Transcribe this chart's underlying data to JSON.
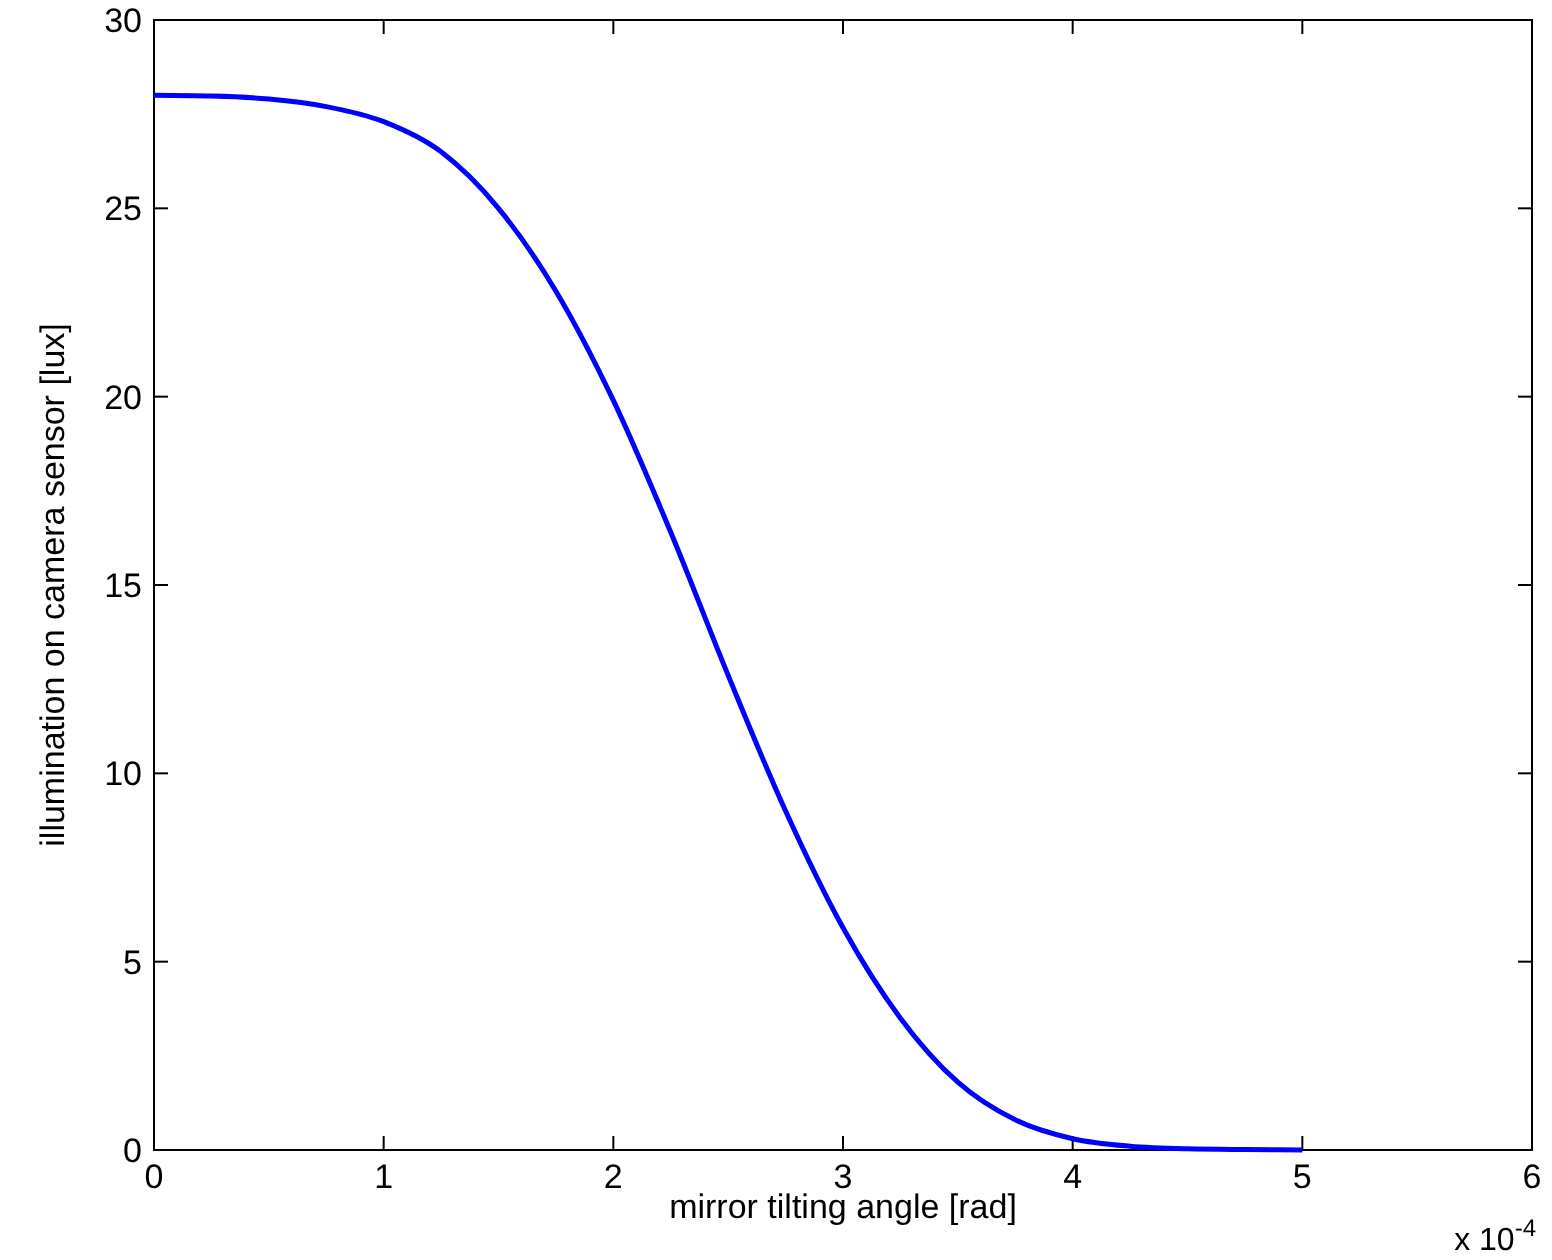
{
  "chart_data": {
    "type": "line",
    "xlabel": "mirror tilting angle [rad]",
    "ylabel": "illumination on camera sensor [lux]",
    "annotations": [
      "x 10$^{-4}$"
    ],
    "xlim": [
      0,
      6
    ],
    "xticks": [
      0,
      1,
      2,
      3,
      4,
      5,
      6
    ],
    "ylim": [
      0,
      30
    ],
    "yticks": [
      0,
      5,
      10,
      15,
      20,
      25,
      30
    ],
    "grid": false,
    "marker": "none",
    "line_style": "solid",
    "series": [
      {
        "color": "#0000ff",
        "x": [
          0,
          0.25,
          0.5,
          0.75,
          1.0,
          1.25,
          1.5,
          1.75,
          2.0,
          2.25,
          2.5,
          2.75,
          3.0,
          3.25,
          3.5,
          3.75,
          4.0,
          4.25,
          4.5,
          4.75,
          5.0
        ],
        "values": [
          28,
          27.98,
          27.9,
          27.7,
          27.3,
          26.5,
          25.0,
          22.8,
          19.9,
          16.4,
          12.6,
          9.0,
          5.9,
          3.5,
          1.8,
          0.8,
          0.3,
          0.1,
          0.03,
          0.01,
          0
        ]
      }
    ]
  }
}
